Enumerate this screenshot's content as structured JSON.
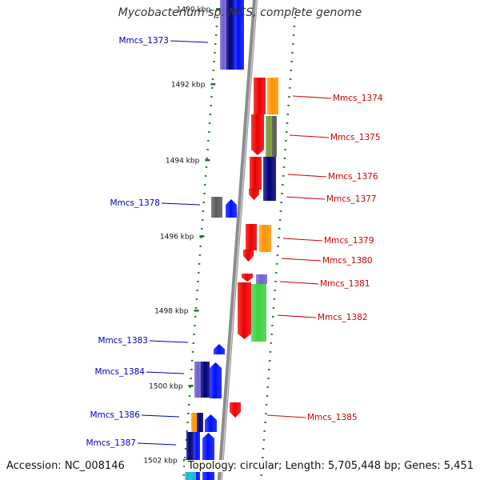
{
  "title": "Mycobacterium sp. MCS, complete genome",
  "footer": {
    "accession": "Accession: NC_008146",
    "summary": "Topology: circular; Length: 5,705,448 bp; Genes: 5,451"
  },
  "colors": {
    "forward_label": "#0000c0",
    "reverse_label": "#d00000",
    "tick": "#1a7a1a",
    "backbone": "#8c8c8c",
    "red": "#ee0000",
    "blue": "#0010ff",
    "navy": "#00007a",
    "orange": "#ff9400",
    "green": "#40d040",
    "olive": "#7a9a3a",
    "grey": "#5a5a5a",
    "purple": "#7060d0",
    "cyan": "#20c8d8"
  },
  "scale_labels": [
    "1490 kbp",
    "1492 kbp",
    "1494 kbp",
    "1496 kbp",
    "1498 kbp",
    "1500 kbp",
    "1502 kbp"
  ],
  "forward_genes": [
    "Mmcs_1373",
    "Mmcs_1378",
    "Mmcs_1383",
    "Mmcs_1384",
    "Mmcs_1386",
    "Mmcs_1387"
  ],
  "reverse_genes": [
    "Mmcs_1374",
    "Mmcs_1375",
    "Mmcs_1376",
    "Mmcs_1377",
    "Mmcs_1379",
    "Mmcs_1380",
    "Mmcs_1381",
    "Mmcs_1382",
    "Mmcs_1385"
  ]
}
